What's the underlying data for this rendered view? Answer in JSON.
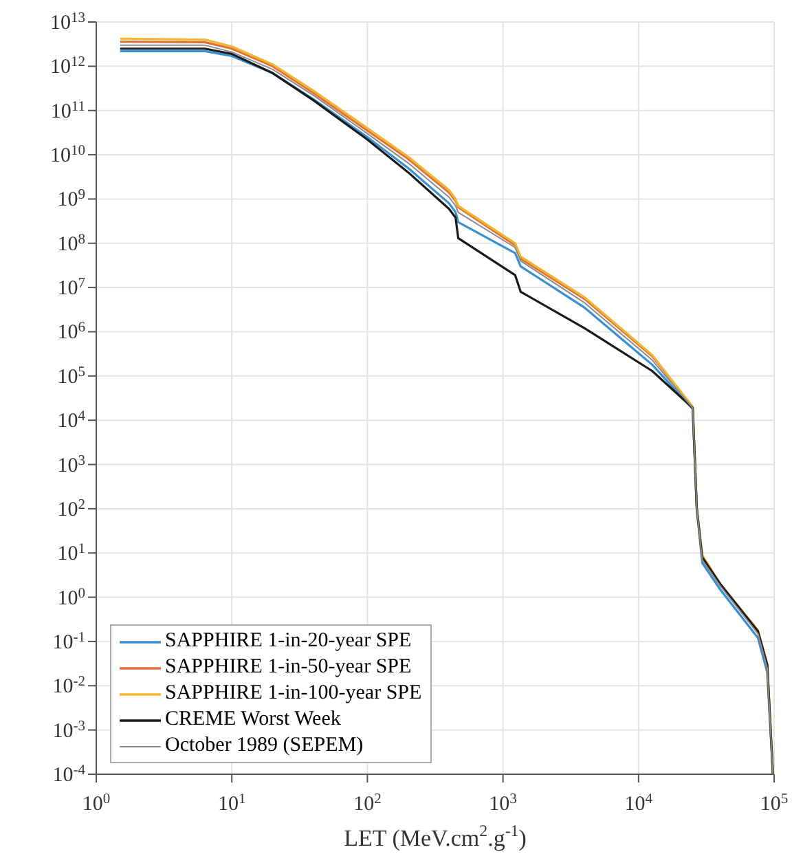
{
  "chart_data": {
    "type": "line",
    "xlabel": "LET (MeV.cm$^{2}$.g$^{-1}$)",
    "x": [
      1.5,
      6.3,
      10,
      20,
      40,
      100,
      200,
      400,
      447,
      468,
      1230,
      1350,
      4000,
      12600,
      25100,
      26900,
      29500,
      40000,
      76000,
      89000,
      98000
    ],
    "series": [
      {
        "name": "SAPPHIRE 1-in-20-year SPE",
        "color": "#3a8fd0",
        "values": [
          2200000000000.0,
          2200000000000.0,
          1700000000000.0,
          700000000000.0,
          180000000000.0,
          25000000000.0,
          5000000000.0,
          800000000.0,
          500000000.0,
          300000000.0,
          60000000.0,
          30000000.0,
          3500000.0,
          180000.0,
          18000.0,
          100,
          6,
          1.5,
          0.12,
          0.02,
          0.0001
        ]
      },
      {
        "name": "SAPPHIRE 1-in-50-year SPE",
        "color": "#e0703a",
        "values": [
          3600000000000.0,
          3500000000000.0,
          2500000000000.0,
          1000000000000.0,
          250000000000.0,
          35000000000.0,
          8000000000.0,
          1400000000.0,
          900000000.0,
          650000000.0,
          90000000.0,
          45000000.0,
          5500000.0,
          280000.0,
          20000.0,
          100,
          8,
          2,
          0.17,
          0.03,
          0.0001
        ]
      },
      {
        "name": "SAPPHIRE 1-in-100-year SPE",
        "color": "#f0b830",
        "values": [
          4200000000000.0,
          4000000000000.0,
          2800000000000.0,
          1100000000000.0,
          280000000000.0,
          40000000000.0,
          9000000000.0,
          1600000000.0,
          1000000000.0,
          700000000.0,
          100000000.0,
          50000000.0,
          6000000.0,
          300000.0,
          20000.0,
          100,
          9,
          2,
          0.18,
          0.03,
          0.0001
        ]
      },
      {
        "name": "CREME Worst Week",
        "color": "#1a1a1a",
        "values": [
          2500000000000.0,
          2500000000000.0,
          1900000000000.0,
          700000000000.0,
          170000000000.0,
          22000000000.0,
          4000000000.0,
          600000000.0,
          380000000.0,
          130000000.0,
          19000000.0,
          8000000.0,
          1200000.0,
          130000.0,
          19000.0,
          100,
          8,
          2,
          0.17,
          0.03,
          0.0001
        ]
      },
      {
        "name": "October 1989 (SEPEM)",
        "color": "#8c8c8c",
        "values": [
          3000000000000.0,
          3000000000000.0,
          2100000000000.0,
          850000000000.0,
          220000000000.0,
          30000000000.0,
          6500000000.0,
          1100000000.0,
          700000000.0,
          500000000.0,
          80000000.0,
          40000000.0,
          4500000.0,
          230000.0,
          19000.0,
          100,
          7,
          1.8,
          0.15,
          0.025,
          0.0001
        ]
      }
    ],
    "log": "xy",
    "xlim": [
      1,
      100000
    ],
    "ylim": [
      0.0001,
      10000000000000.0
    ],
    "xticks": [
      {
        "value": 1,
        "label": "10$^{0}$"
      },
      {
        "value": 10,
        "label": "10$^{1}$"
      },
      {
        "value": 100,
        "label": "10$^{2}$"
      },
      {
        "value": 1000,
        "label": "10$^{3}$"
      },
      {
        "value": 10000,
        "label": "10$^{4}$"
      },
      {
        "value": 100000,
        "label": "10$^{5}$"
      }
    ],
    "yticks": [
      {
        "value": 0.0001,
        "label": "10$^{-4}$"
      },
      {
        "value": 0.001,
        "label": "10$^{-3}$"
      },
      {
        "value": 0.01,
        "label": "10$^{-2}$"
      },
      {
        "value": 0.1,
        "label": "10$^{-1}$"
      },
      {
        "value": 1,
        "label": "10$^{0}$"
      },
      {
        "value": 10,
        "label": "10$^{1}$"
      },
      {
        "value": 100,
        "label": "10$^{2}$"
      },
      {
        "value": 1000,
        "label": "10$^{3}$"
      },
      {
        "value": 10000,
        "label": "10$^{4}$"
      },
      {
        "value": 100000,
        "label": "10$^{5}$"
      },
      {
        "value": 1000000,
        "label": "10$^{6}$"
      },
      {
        "value": 10000000,
        "label": "10$^{7}$"
      },
      {
        "value": 100000000,
        "label": "10$^{8}$"
      },
      {
        "value": 1000000000,
        "label": "10$^{9}$"
      },
      {
        "value": 10000000000,
        "label": "10$^{10}$"
      },
      {
        "value": 100000000000,
        "label": "10$^{11}$"
      },
      {
        "value": 1000000000000,
        "label": "10$^{12}$"
      },
      {
        "value": 10000000000000,
        "label": "10$^{13}$"
      }
    ],
    "grid": true,
    "legend": "bottom left",
    "marker": "none",
    "line_style": "solid"
  }
}
